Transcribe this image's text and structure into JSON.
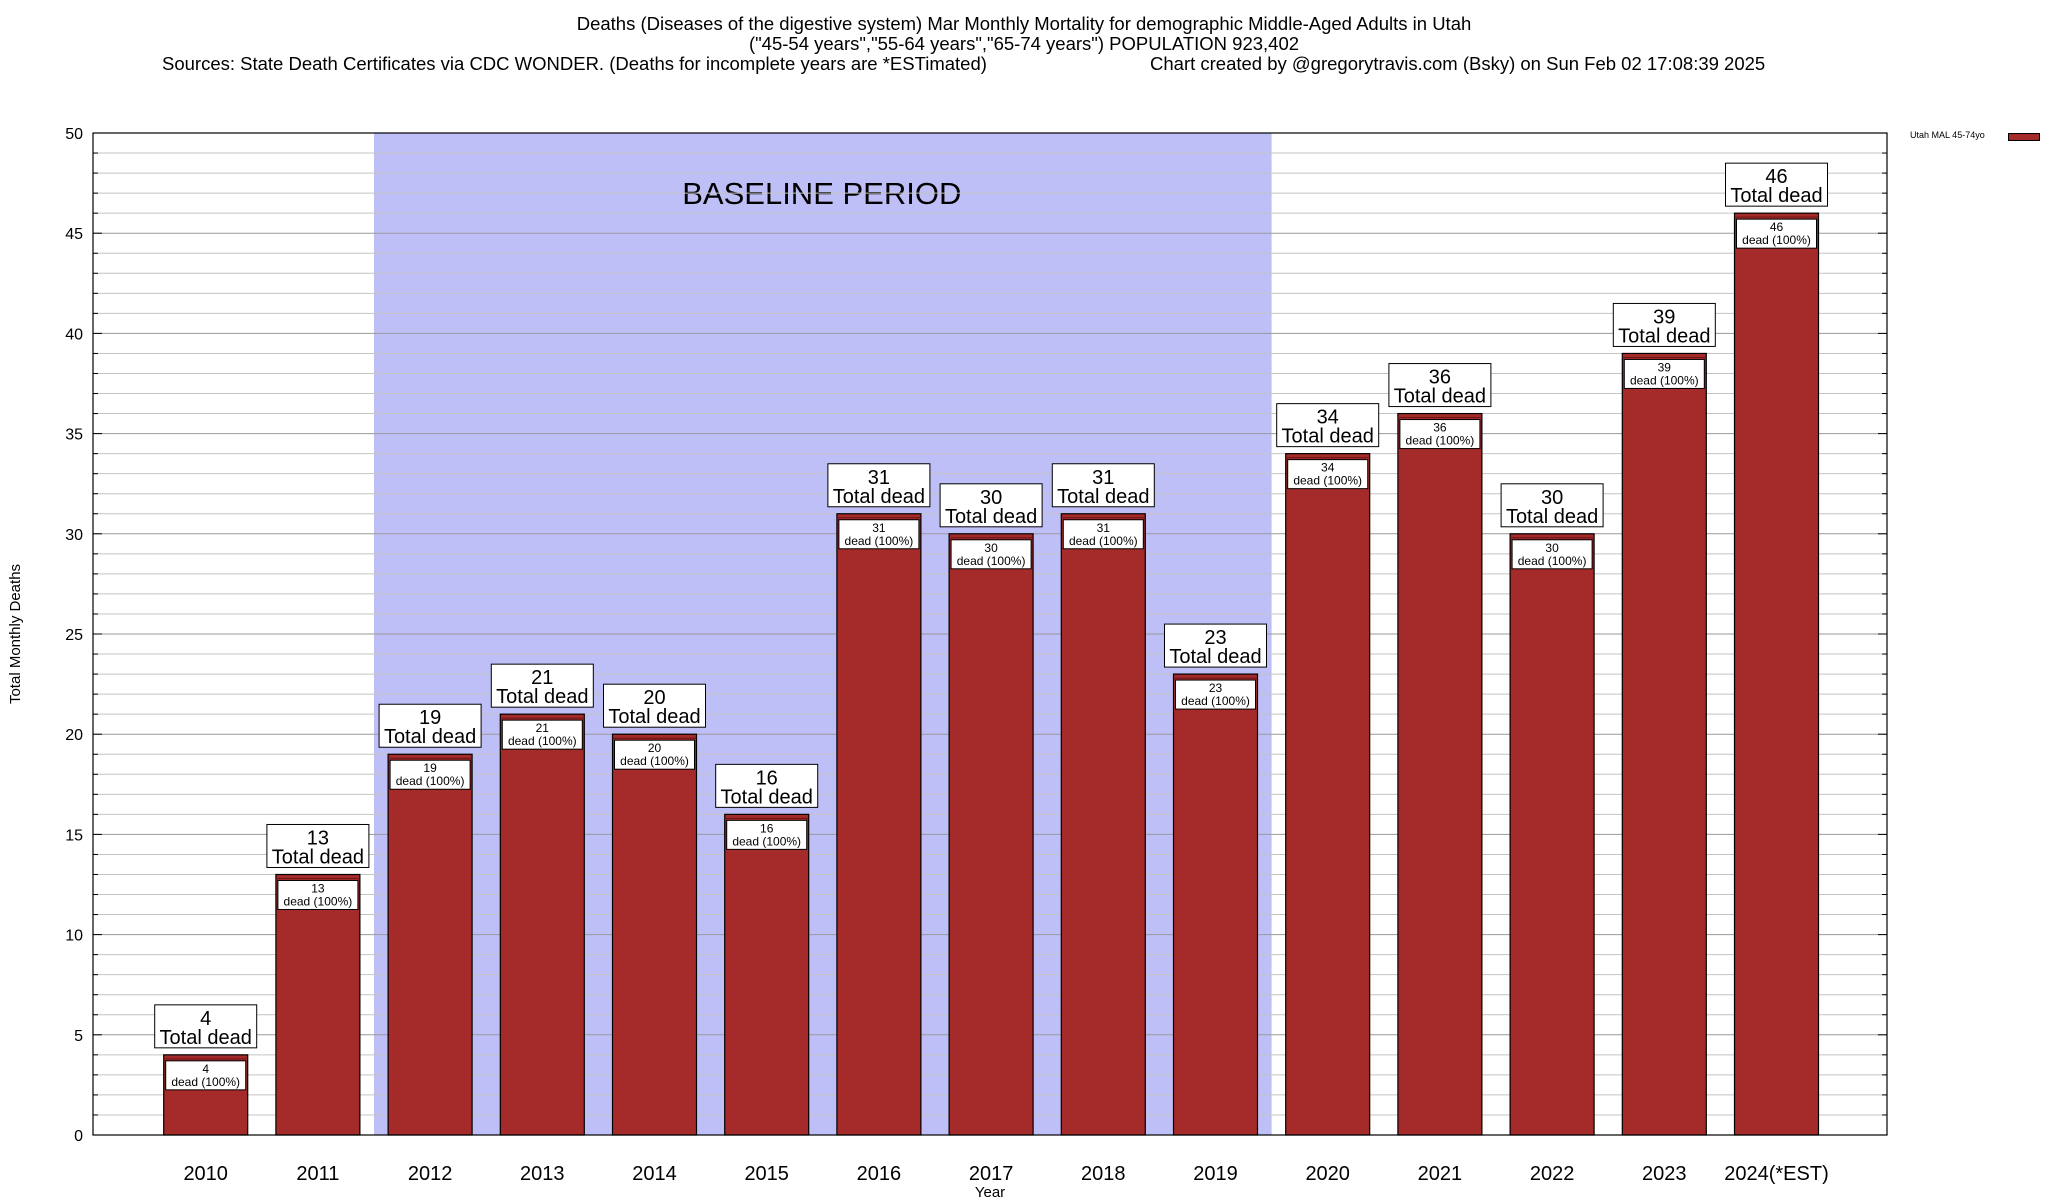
{
  "header": {
    "title_line1": "Deaths (Diseases of the digestive system) Mar Monthly Mortality for demographic Middle-Aged Adults in Utah",
    "title_line2": "(\"45-54 years\",\"55-64 years\",\"65-74 years\") POPULATION 923,402",
    "sources": "Sources: State Death Certificates via CDC WONDER. (Deaths for incomplete years are *ESTimated)",
    "credit": "Chart created by @gregorytravis.com (Bsky) on Sun Feb 02 17:08:39 2025"
  },
  "chart_data": {
    "type": "bar",
    "xlabel": "Year",
    "ylabel": "Total Monthly Deaths",
    "ylim": [
      0,
      50
    ],
    "y_ticks": [
      0,
      5,
      10,
      15,
      20,
      25,
      30,
      35,
      40,
      45,
      50
    ],
    "y_minor_step": 1,
    "grid": true,
    "legend_placement": "top-right, outside plot",
    "categories": [
      "2010",
      "2011",
      "2012",
      "2013",
      "2014",
      "2015",
      "2016",
      "2017",
      "2018",
      "2019",
      "2020",
      "2021",
      "2022",
      "2023",
      "2024(*EST)"
    ],
    "series": [
      {
        "name": "Utah MAL 45-74yo",
        "color": "#a52a2a",
        "values": [
          4,
          13,
          19,
          21,
          20,
          16,
          31,
          30,
          31,
          23,
          34,
          36,
          30,
          39,
          46
        ]
      }
    ],
    "total_label_suffix": "Total dead",
    "inner_label_suffix": "dead (100%)",
    "baseline": {
      "label": "BASELINE PERIOD",
      "from": "2012",
      "to": "2019",
      "color": "#bfbff7"
    }
  }
}
